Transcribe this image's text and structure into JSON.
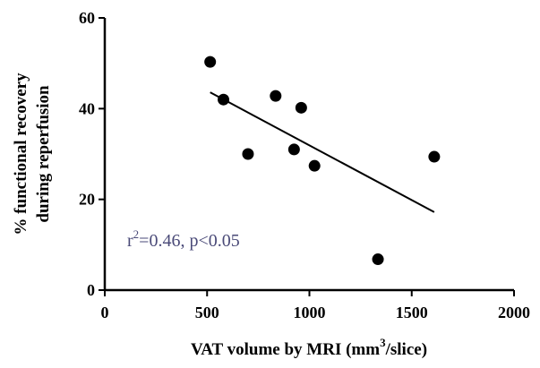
{
  "chart_data": {
    "type": "scatter",
    "title": "",
    "xlabel": {
      "main": "VAT volume by MRI (mm",
      "sup": "3",
      "tail": "/slice)"
    },
    "ylabel": {
      "line1": "% functional recovery",
      "line2": "during reperfusion"
    },
    "xlim": [
      0,
      2000
    ],
    "ylim": [
      0,
      60
    ],
    "x_ticks": [
      0,
      500,
      1000,
      1500,
      2000
    ],
    "y_ticks": [
      0,
      20,
      40,
      60
    ],
    "x_tick_labels": [
      "0",
      "500",
      "1000",
      "1500",
      "2000"
    ],
    "y_tick_labels": [
      "0",
      "20",
      "40",
      "60"
    ],
    "grid": false,
    "series": [
      {
        "points": [
          {
            "x": 515,
            "y": 50.3
          },
          {
            "x": 580,
            "y": 42.0
          },
          {
            "x": 700,
            "y": 30.0
          },
          {
            "x": 835,
            "y": 42.8
          },
          {
            "x": 925,
            "y": 31.0
          },
          {
            "x": 960,
            "y": 40.2
          },
          {
            "x": 1025,
            "y": 27.4
          },
          {
            "x": 1335,
            "y": 6.8
          },
          {
            "x": 1610,
            "y": 29.4
          }
        ],
        "color": "#000000"
      }
    ],
    "trendline": {
      "x_start": 515,
      "y_start": 43.6,
      "x_end": 1610,
      "y_end": 17.2,
      "color": "#000000"
    },
    "annotation": {
      "prefix": "r",
      "sup": "2",
      "rest": "=0.46, p<0.05",
      "color": "#4a4a78"
    }
  }
}
